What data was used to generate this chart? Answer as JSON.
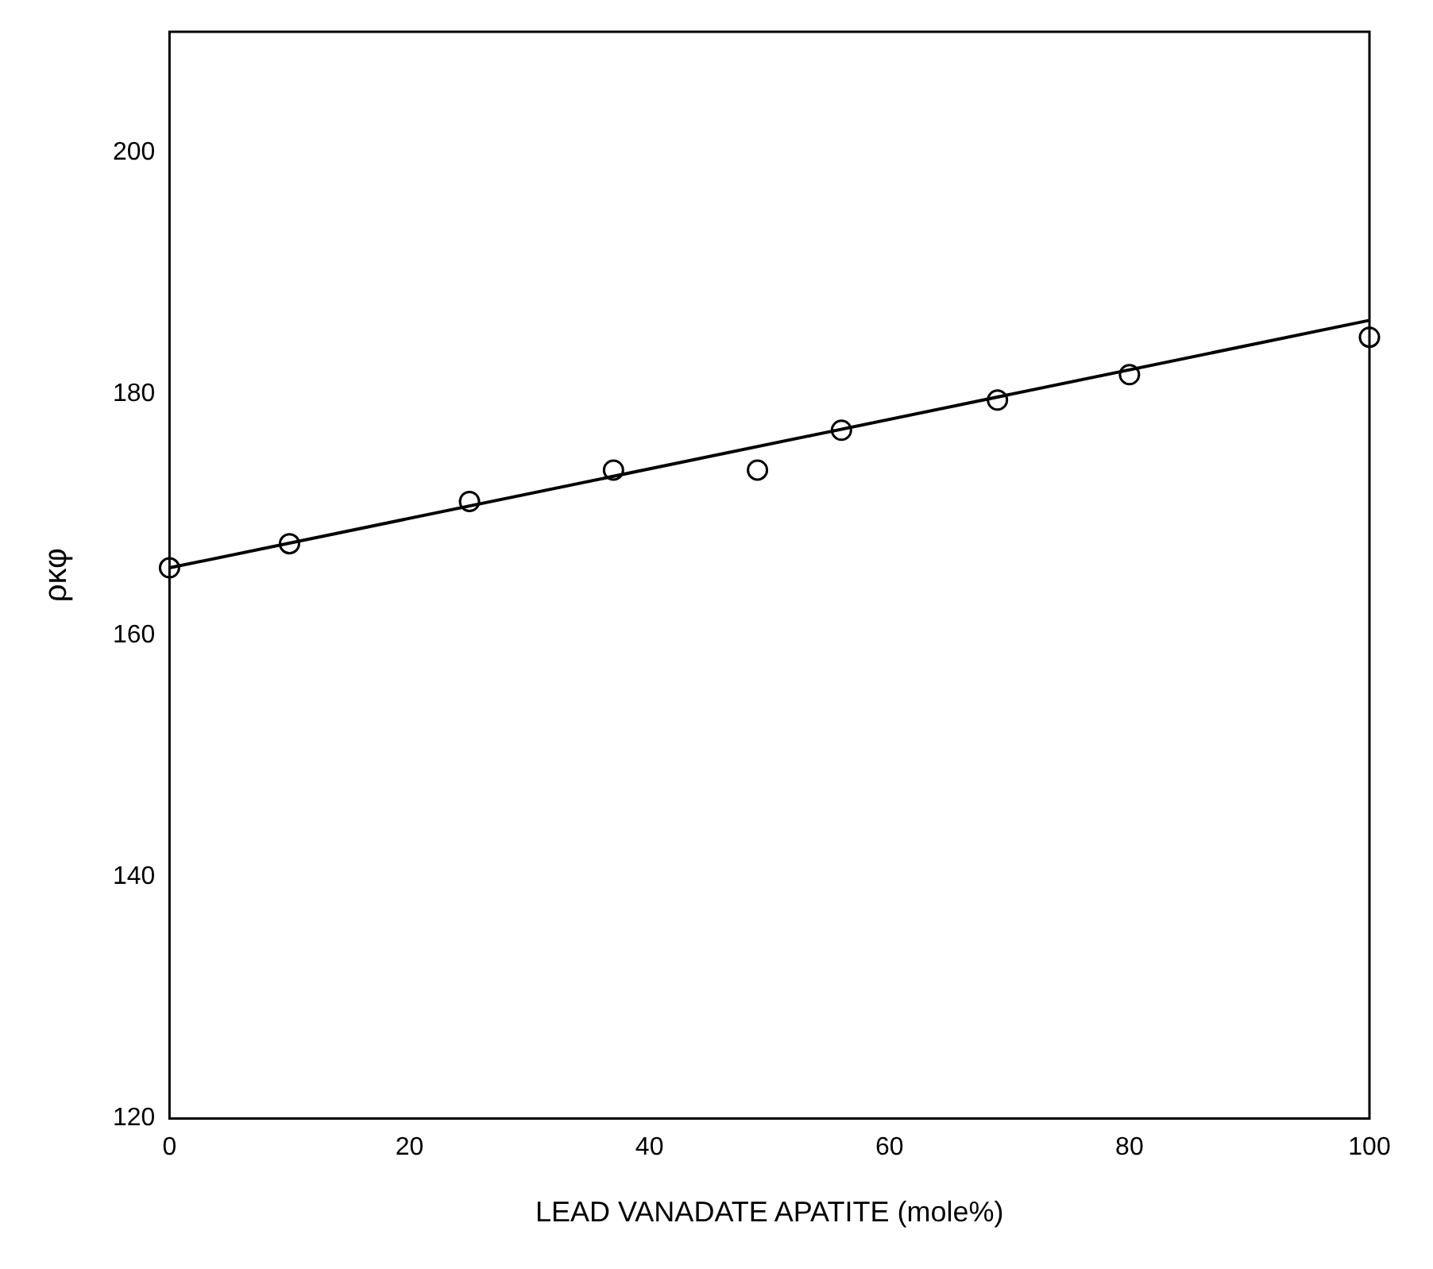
{
  "chart_data": {
    "type": "scatter",
    "xlabel": "LEAD VANADATE APATITE (mole%)",
    "ylabel": "ρκφ",
    "series": [
      {
        "color": "#000000",
        "x": [
          0,
          10,
          25,
          37,
          49,
          56,
          69,
          80,
          100
        ],
        "values": [
          165.6,
          167.6,
          171.1,
          173.7,
          173.7,
          177,
          179.5,
          181.6,
          184.7
        ],
        "marker": "circle"
      },
      {
        "type": "line",
        "color": "#000000",
        "x": [
          0,
          100
        ],
        "values": [
          165.6,
          186.1
        ],
        "marker": "none",
        "line_style": "solid"
      }
    ],
    "xlim": [
      0,
      100
    ],
    "xticks": [
      0,
      20,
      40,
      60,
      80,
      100
    ],
    "ylim": [
      120,
      210
    ],
    "yticks": [
      120,
      140,
      160,
      180,
      200
    ],
    "grid": false,
    "legend": false
  }
}
